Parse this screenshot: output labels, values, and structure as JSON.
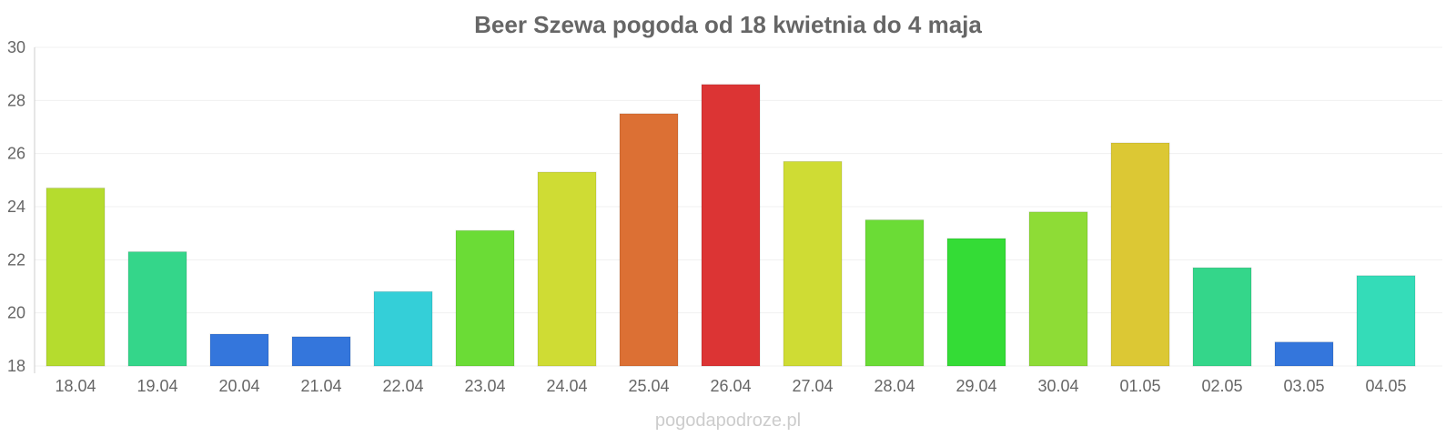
{
  "chart_data": {
    "type": "bar",
    "title": "Beer Szewa pogoda od 18 kwietnia do 4 maja",
    "xlabel": "",
    "ylabel": "",
    "ylim": [
      18,
      30
    ],
    "yticks": [
      "18",
      "20",
      "22",
      "24",
      "26",
      "28",
      "30"
    ],
    "grid": true,
    "categories": [
      "18.04",
      "19.04",
      "20.04",
      "21.04",
      "22.04",
      "23.04",
      "24.04",
      "25.04",
      "26.04",
      "27.04",
      "28.04",
      "29.04",
      "30.04",
      "01.05",
      "02.05",
      "03.05",
      "04.05"
    ],
    "values": [
      24.7,
      22.3,
      19.2,
      19.1,
      20.8,
      23.1,
      25.3,
      27.5,
      28.6,
      25.7,
      23.5,
      22.8,
      23.8,
      26.4,
      21.7,
      18.9,
      21.4
    ],
    "colors": [
      "#b5dc2e",
      "#34d68a",
      "#3476dc",
      "#3476dc",
      "#34cfd8",
      "#6bdc36",
      "#cfdc34",
      "#dc7034",
      "#dc3434",
      "#cfdc34",
      "#6bdc36",
      "#34dc36",
      "#8edc36",
      "#dcc834",
      "#34d68a",
      "#3476dc",
      "#34dcb8"
    ]
  },
  "watermark": "pogodapodroze.pl"
}
